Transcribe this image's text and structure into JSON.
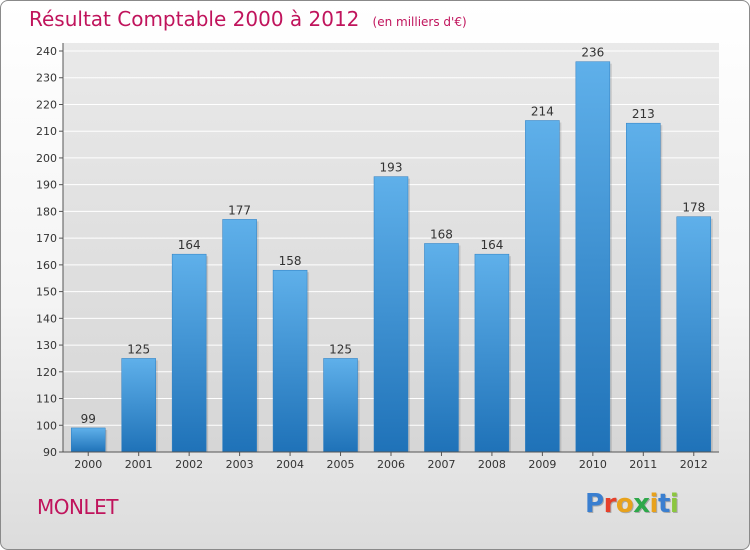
{
  "chart_data": {
    "type": "bar",
    "title": "Résultat Comptable 2000 à 2012",
    "subtitle": "(en milliers d'€)",
    "categories": [
      "2000",
      "2001",
      "2002",
      "2003",
      "2004",
      "2005",
      "2006",
      "2007",
      "2008",
      "2009",
      "2010",
      "2011",
      "2012"
    ],
    "values": [
      99,
      125,
      164,
      177,
      158,
      125,
      193,
      168,
      164,
      214,
      236,
      213,
      178
    ],
    "yticks": [
      90,
      100,
      110,
      120,
      130,
      140,
      150,
      160,
      170,
      180,
      190,
      200,
      210,
      220,
      230,
      240
    ],
    "ylim": [
      90,
      240
    ],
    "xlabel": "",
    "ylabel": "",
    "grid": true
  },
  "location": "MONLET",
  "brand": {
    "letters": [
      "P",
      "r",
      "o",
      "x",
      "i",
      "t",
      "i"
    ],
    "colors": [
      "#3a7fd0",
      "#e6402a",
      "#e8a21c",
      "#2ea84a",
      "#e8a21c",
      "#3a7fd0",
      "#8cc63f"
    ]
  },
  "colors": {
    "accent": "#c0145c",
    "bar_top": "#5fb0ea",
    "bar_bottom": "#1f72b8",
    "grid": "#ffffff"
  }
}
